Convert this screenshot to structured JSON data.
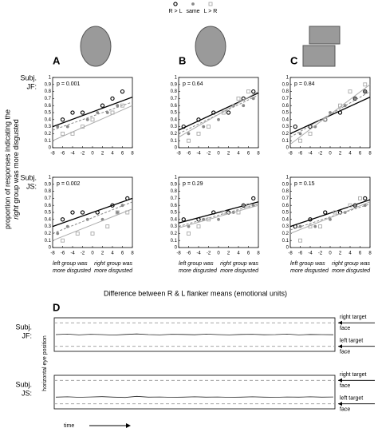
{
  "legend": [
    {
      "label": "R > L",
      "color": "#000000",
      "marker": "circle"
    },
    {
      "label": "same",
      "color": "#888888",
      "marker": "dot"
    },
    {
      "label": "L > R",
      "color": "#aaaaaa",
      "marker": "square"
    }
  ],
  "ylabel_lines": [
    "proportion of responses indicating the",
    "right",
    "group was more disgusted"
  ],
  "xlabel": "Difference between R & L flanker means (emotional units)",
  "d_panel": "D",
  "d_ylabel": "horizontal eye position",
  "d_time": "time",
  "chart_data": [
    {
      "type": "scatter",
      "panel": "A",
      "subject_lines": [
        "Subj.",
        "JF:"
      ],
      "annotation": "p = 0.001",
      "xlim": [
        -8,
        8
      ],
      "xticks": [
        -8,
        -6,
        -4,
        -2,
        0,
        2,
        4,
        6,
        8
      ],
      "ylim": [
        0,
        1
      ],
      "yticks": [
        0,
        0.1,
        0.2,
        0.3,
        0.4,
        0.5,
        0.6,
        0.7,
        0.8,
        0.9,
        1
      ],
      "series": [
        {
          "x": [
            -6,
            -4,
            -2,
            2,
            4,
            6
          ],
          "values": [
            0.4,
            0.5,
            0.5,
            0.6,
            0.7,
            0.8
          ],
          "fit": [
            0.3,
            0.72
          ]
        },
        {
          "x": [
            -7,
            -5,
            -1,
            1,
            3,
            5
          ],
          "values": [
            0.3,
            0.3,
            0.4,
            0.5,
            0.5,
            0.6
          ],
          "fit": [
            0.25,
            0.65
          ]
        },
        {
          "x": [
            -6,
            -4,
            -2,
            0,
            4,
            6
          ],
          "values": [
            0.2,
            0.2,
            0.3,
            0.4,
            0.5,
            0.6
          ],
          "fit": [
            0.1,
            0.6
          ]
        }
      ]
    },
    {
      "type": "scatter",
      "panel": "B",
      "annotation": "p = 0.64",
      "xlim": [
        -8,
        8
      ],
      "xticks": [
        -8,
        -6,
        -4,
        -2,
        0,
        2,
        4,
        6,
        8
      ],
      "ylim": [
        0,
        1
      ],
      "yticks": [
        0,
        0.1,
        0.2,
        0.3,
        0.4,
        0.5,
        0.6,
        0.7,
        0.8,
        0.9,
        1
      ],
      "series": [
        {
          "x": [
            -7,
            -4,
            -1,
            2,
            5,
            7
          ],
          "values": [
            0.3,
            0.4,
            0.5,
            0.5,
            0.7,
            0.8
          ],
          "fit": [
            0.25,
            0.78
          ]
        },
        {
          "x": [
            -6,
            -3,
            0,
            3,
            5,
            7
          ],
          "values": [
            0.2,
            0.3,
            0.4,
            0.6,
            0.6,
            0.7
          ],
          "fit": [
            0.2,
            0.75
          ]
        },
        {
          "x": [
            -6,
            -4,
            -2,
            1,
            4,
            6
          ],
          "values": [
            0.1,
            0.2,
            0.3,
            0.5,
            0.7,
            0.8
          ],
          "fit": [
            0.15,
            0.8
          ]
        }
      ]
    },
    {
      "type": "scatter",
      "panel": "C",
      "annotation": "p = 0.84",
      "xlim": [
        -8,
        8
      ],
      "xticks": [
        -8,
        -6,
        -4,
        -2,
        0,
        2,
        4,
        6,
        8
      ],
      "ylim": [
        0,
        1
      ],
      "yticks": [
        0,
        0.1,
        0.2,
        0.3,
        0.4,
        0.5,
        0.6,
        0.7,
        0.8,
        0.9,
        1
      ],
      "series": [
        {
          "x": [
            -7,
            -4,
            -1,
            2,
            5,
            7
          ],
          "values": [
            0.3,
            0.3,
            0.4,
            0.5,
            0.7,
            0.8
          ],
          "fit": [
            0.2,
            0.72
          ]
        },
        {
          "x": [
            -6,
            -3,
            0,
            3,
            5,
            7
          ],
          "values": [
            0.2,
            0.3,
            0.5,
            0.6,
            0.7,
            0.8
          ],
          "fit": [
            0.15,
            0.8
          ]
        },
        {
          "x": [
            -6,
            -4,
            -1,
            2,
            4,
            7
          ],
          "values": [
            0.1,
            0.2,
            0.4,
            0.6,
            0.8,
            0.9
          ],
          "fit": [
            0.05,
            0.9
          ]
        }
      ]
    },
    {
      "type": "scatter",
      "subject_lines": [
        "Subj.",
        "JS:"
      ],
      "annotation": "p = 0.002",
      "xlim": [
        -8,
        8
      ],
      "xticks": [
        -8,
        -6,
        -4,
        -2,
        0,
        2,
        4,
        6,
        8
      ],
      "ylim": [
        0,
        1
      ],
      "yticks": [
        0,
        0.1,
        0.2,
        0.3,
        0.4,
        0.5,
        0.6,
        0.7,
        0.8,
        0.9,
        1
      ],
      "xnote_left": [
        "left group was",
        "more disgusted"
      ],
      "xnote_right": [
        "right group was",
        "more disgusted"
      ],
      "series": [
        {
          "x": [
            -6,
            -4,
            -2,
            1,
            4,
            7
          ],
          "values": [
            0.4,
            0.5,
            0.5,
            0.5,
            0.6,
            0.7
          ],
          "fit": [
            0.3,
            0.7
          ]
        },
        {
          "x": [
            -7,
            -5,
            -1,
            2,
            5,
            6
          ],
          "values": [
            0.2,
            0.3,
            0.4,
            0.4,
            0.5,
            0.6
          ],
          "fit": [
            0.2,
            0.65
          ]
        },
        {
          "x": [
            -6,
            -3,
            0,
            3,
            5,
            7
          ],
          "values": [
            0.1,
            0.2,
            0.2,
            0.3,
            0.5,
            0.5
          ],
          "fit": [
            0.1,
            0.55
          ]
        }
      ]
    },
    {
      "type": "scatter",
      "annotation": "p = 0.29",
      "xlim": [
        -8,
        8
      ],
      "xticks": [
        -8,
        -6,
        -4,
        -2,
        0,
        2,
        4,
        6,
        8
      ],
      "ylim": [
        0,
        1
      ],
      "yticks": [
        0,
        0.1,
        0.2,
        0.3,
        0.4,
        0.5,
        0.6,
        0.7,
        0.8,
        0.9,
        1
      ],
      "xnote_left": [
        "left group was",
        "more disgusted"
      ],
      "xnote_right": [
        "right group was",
        "more disgusted"
      ],
      "series": [
        {
          "x": [
            -7,
            -4,
            -1,
            2,
            5,
            7
          ],
          "values": [
            0.4,
            0.4,
            0.5,
            0.5,
            0.6,
            0.7
          ],
          "fit": [
            0.35,
            0.65
          ]
        },
        {
          "x": [
            -6,
            -3,
            0,
            3,
            5,
            7
          ],
          "values": [
            0.3,
            0.4,
            0.4,
            0.5,
            0.6,
            0.6
          ],
          "fit": [
            0.3,
            0.62
          ]
        },
        {
          "x": [
            -6,
            -4,
            -2,
            1,
            4,
            6
          ],
          "values": [
            0.2,
            0.3,
            0.4,
            0.5,
            0.5,
            0.6
          ],
          "fit": [
            0.28,
            0.6
          ]
        }
      ]
    },
    {
      "type": "scatter",
      "annotation": "p = 0.15",
      "xlim": [
        -8,
        8
      ],
      "xticks": [
        -8,
        -6,
        -4,
        -2,
        0,
        2,
        4,
        6,
        8
      ],
      "ylim": [
        0,
        1
      ],
      "yticks": [
        0,
        0.1,
        0.2,
        0.3,
        0.4,
        0.5,
        0.6,
        0.7,
        0.8,
        0.9,
        1
      ],
      "xnote_left": [
        "left group was",
        "more disgusted"
      ],
      "xnote_right": [
        "right group was",
        "more disgusted"
      ],
      "series": [
        {
          "x": [
            -7,
            -4,
            -1,
            2,
            5,
            7
          ],
          "values": [
            0.3,
            0.4,
            0.5,
            0.5,
            0.6,
            0.7
          ],
          "fit": [
            0.3,
            0.68
          ]
        },
        {
          "x": [
            -6,
            -3,
            0,
            3,
            5,
            7
          ],
          "values": [
            0.3,
            0.3,
            0.4,
            0.5,
            0.6,
            0.6
          ],
          "fit": [
            0.25,
            0.62
          ]
        },
        {
          "x": [
            -6,
            -4,
            -2,
            1,
            4,
            6
          ],
          "values": [
            0.1,
            0.3,
            0.3,
            0.5,
            0.6,
            0.7
          ],
          "fit": [
            0.2,
            0.65
          ]
        }
      ]
    },
    {
      "type": "line",
      "subject_lines": [
        "Subj.",
        "JF:"
      ],
      "ylim": [
        -1,
        1
      ],
      "targets": [
        {
          "value": 0.7,
          "label_lines": [
            "right target",
            "face"
          ]
        },
        {
          "value": -0.7,
          "label_lines": [
            "left target",
            "face"
          ]
        }
      ],
      "values": [
        0.0,
        0.03,
        -0.02,
        0.02,
        0.0,
        -0.03,
        0.01,
        0.04,
        0.0,
        -0.02,
        0.02,
        0.01,
        -0.01,
        0.03,
        0.0,
        -0.02,
        0.01,
        0.02,
        -0.01,
        0.0,
        0.03,
        -0.02,
        0.01,
        0.0,
        -0.01
      ]
    },
    {
      "type": "line",
      "subject_lines": [
        "Subj.",
        "JS:"
      ],
      "ylim": [
        -1,
        1
      ],
      "targets": [
        {
          "value": 0.7,
          "label_lines": [
            "right target",
            "face"
          ]
        },
        {
          "value": -0.7,
          "label_lines": [
            "left target",
            "face"
          ]
        }
      ],
      "values": [
        -0.3,
        -0.28,
        -0.31,
        -0.29,
        -0.27,
        -0.3,
        -0.32,
        -0.25,
        -0.3,
        -0.29,
        -0.31,
        -0.3,
        -0.28,
        -0.3,
        -0.29,
        -0.31,
        -0.3,
        -0.28,
        -0.3,
        -0.31,
        -0.29,
        -0.3,
        -0.28,
        -0.3,
        -0.29
      ]
    }
  ]
}
